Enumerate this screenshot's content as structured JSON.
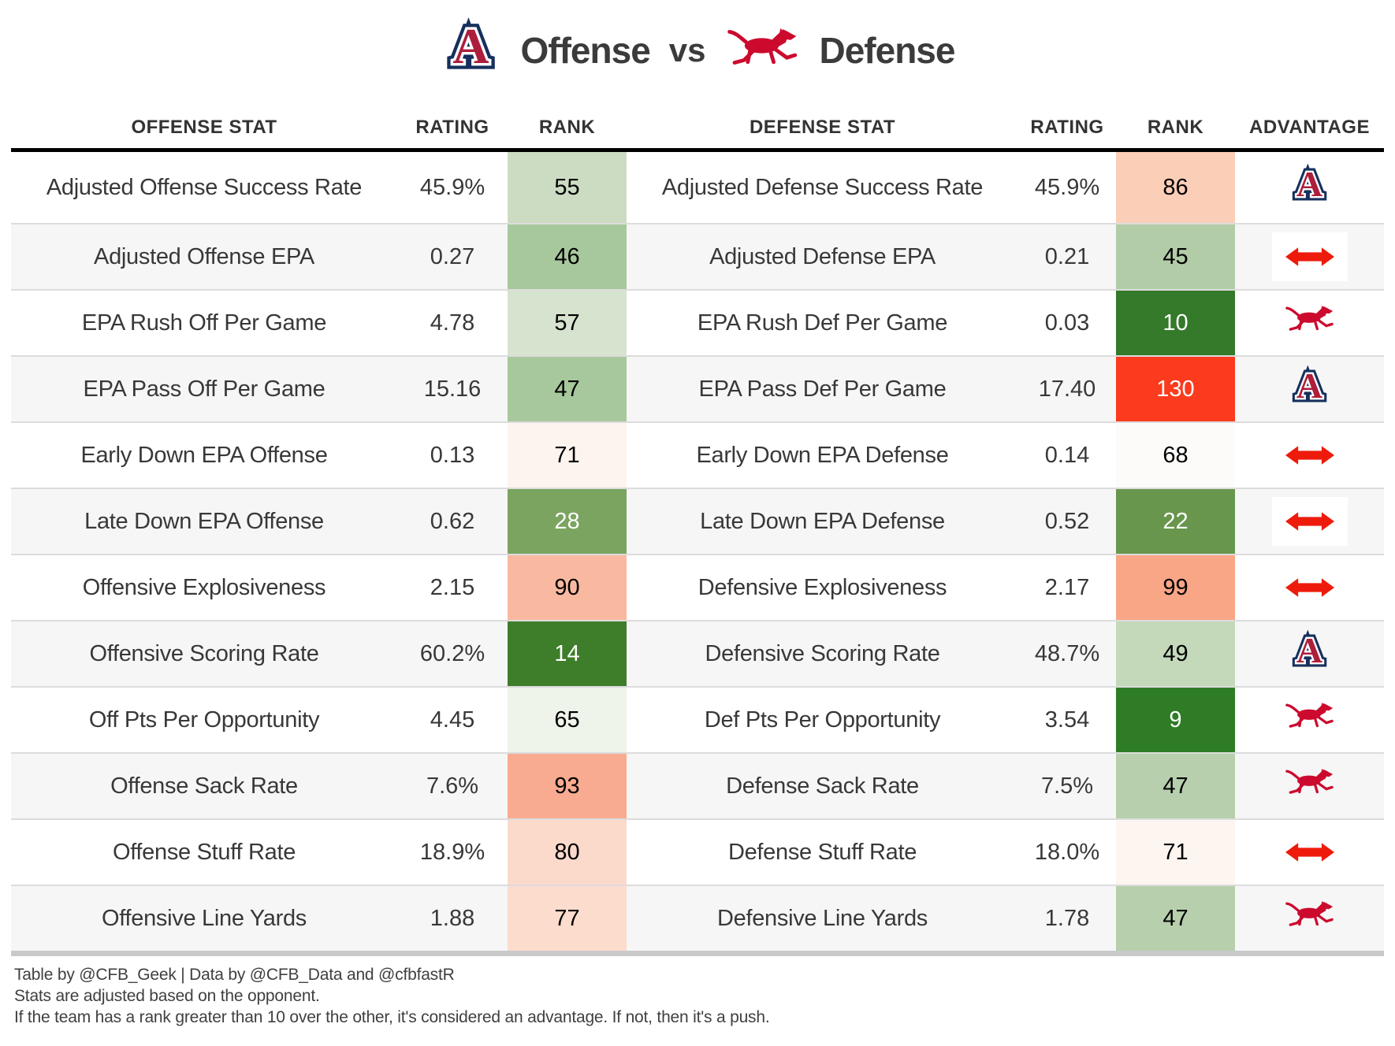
{
  "title": {
    "team1_label": "Offense",
    "vs": "vs",
    "team2_label": "Defense"
  },
  "colors": {
    "push_arrow_red": "#ee1b0c",
    "arizona_navy": "#16305d",
    "arizona_red": "#ad1e3c",
    "smu_red": "#cc0a2e",
    "header_rule": "#000000",
    "bottom_rule": "#c9c9c9",
    "row_alt_bg": "#f6f6f6"
  },
  "table": {
    "columns": [
      "OFFENSE STAT",
      "RATING",
      "RANK",
      "DEFENSE STAT",
      "RATING",
      "RANK",
      "ADVANTAGE"
    ],
    "rows": [
      {
        "offense_stat": "Adjusted Offense Success Rate",
        "offense_rating": "45.9%",
        "offense_rank": "55",
        "offense_rank_bg": "#ccdcc3",
        "offense_rank_text": "#000000",
        "defense_stat": "Adjusted Defense Success Rate",
        "defense_rating": "45.9%",
        "defense_rank": "86",
        "defense_rank_bg": "#fbceb7",
        "defense_rank_text": "#000000",
        "advantage": "arizona"
      },
      {
        "offense_stat": "Adjusted Offense EPA",
        "offense_rating": "0.27",
        "offense_rank": "46",
        "offense_rank_bg": "#a7c89c",
        "offense_rank_text": "#000000",
        "defense_stat": "Adjusted Defense EPA",
        "defense_rating": "0.21",
        "defense_rank": "45",
        "defense_rank_bg": "#b2cca7",
        "defense_rank_text": "#000000",
        "advantage": "push"
      },
      {
        "offense_stat": "EPA Rush Off Per Game",
        "offense_rating": "4.78",
        "offense_rank": "57",
        "offense_rank_bg": "#d6e3ce",
        "offense_rank_text": "#000000",
        "defense_stat": "EPA Rush Def Per Game",
        "defense_rating": "0.03",
        "defense_rank": "10",
        "defense_rank_bg": "#35792a",
        "defense_rank_text": "#ffffff",
        "advantage": "smu"
      },
      {
        "offense_stat": "EPA Pass Off Per Game",
        "offense_rating": "15.16",
        "offense_rank": "47",
        "offense_rank_bg": "#a7c89c",
        "offense_rank_text": "#000000",
        "defense_stat": "EPA Pass Def Per Game",
        "defense_rating": "17.40",
        "defense_rank": "130",
        "defense_rank_bg": "#fb3a1e",
        "defense_rank_text": "#ffffff",
        "advantage": "arizona"
      },
      {
        "offense_stat": "Early Down EPA Offense",
        "offense_rating": "0.13",
        "offense_rank": "71",
        "offense_rank_bg": "#fdf4ee",
        "offense_rank_text": "#000000",
        "defense_stat": "Early Down EPA Defense",
        "defense_rating": "0.14",
        "defense_rank": "68",
        "defense_rank_bg": "#fdfbfa",
        "defense_rank_text": "#000000",
        "advantage": "push"
      },
      {
        "offense_stat": "Late Down EPA Offense",
        "offense_rating": "0.62",
        "offense_rank": "28",
        "offense_rank_bg": "#7aa45f",
        "offense_rank_text": "#ffffff",
        "defense_stat": "Late Down EPA Defense",
        "defense_rating": "0.52",
        "defense_rank": "22",
        "defense_rank_bg": "#68964c",
        "defense_rank_text": "#ffffff",
        "advantage": "push"
      },
      {
        "offense_stat": "Offensive Explosiveness",
        "offense_rating": "2.15",
        "offense_rank": "90",
        "offense_rank_bg": "#f9b9a1",
        "offense_rank_text": "#000000",
        "defense_stat": "Defensive Explosiveness",
        "defense_rating": "2.17",
        "defense_rank": "99",
        "defense_rank_bg": "#f9a687",
        "defense_rank_text": "#000000",
        "advantage": "push"
      },
      {
        "offense_stat": "Offensive Scoring Rate",
        "offense_rating": "60.2%",
        "offense_rank": "14",
        "offense_rank_bg": "#3e7d2a",
        "offense_rank_text": "#ffffff",
        "defense_stat": "Defensive Scoring Rate",
        "defense_rating": "48.7%",
        "defense_rank": "49",
        "defense_rank_bg": "#c4d8ba",
        "defense_rank_text": "#000000",
        "advantage": "arizona"
      },
      {
        "offense_stat": "Off Pts Per Opportunity",
        "offense_rating": "4.45",
        "offense_rank": "65",
        "offense_rank_bg": "#eff4eb",
        "offense_rank_text": "#000000",
        "defense_stat": "Def Pts Per Opportunity",
        "defense_rating": "3.54",
        "defense_rank": "9",
        "defense_rank_bg": "#2e7c25",
        "defense_rank_text": "#ffffff",
        "advantage": "smu"
      },
      {
        "offense_stat": "Offense Sack Rate",
        "offense_rating": "7.6%",
        "offense_rank": "93",
        "offense_rank_bg": "#f8ab90",
        "offense_rank_text": "#000000",
        "defense_stat": "Defense Sack Rate",
        "defense_rating": "7.5%",
        "defense_rank": "47",
        "defense_rank_bg": "#b7cfad",
        "defense_rank_text": "#000000",
        "advantage": "smu"
      },
      {
        "offense_stat": "Offense Stuff Rate",
        "offense_rating": "18.9%",
        "offense_rank": "80",
        "offense_rank_bg": "#fcdacb",
        "offense_rank_text": "#000000",
        "defense_stat": "Defense Stuff Rate",
        "defense_rating": "18.0%",
        "defense_rank": "71",
        "defense_rank_bg": "#fdf5f0",
        "defense_rank_text": "#000000",
        "advantage": "push"
      },
      {
        "offense_stat": "Offensive Line Yards",
        "offense_rating": "1.88",
        "offense_rank": "77",
        "offense_rank_bg": "#fcdccd",
        "offense_rank_text": "#000000",
        "defense_stat": "Defensive Line Yards",
        "defense_rating": "1.78",
        "defense_rank": "47",
        "defense_rank_bg": "#b7cfad",
        "defense_rank_text": "#000000",
        "advantage": "smu"
      }
    ]
  },
  "footer": {
    "lines": [
      "Table by @CFB_Geek | Data by @CFB_Data and @cfbfastR",
      "Stats are adjusted based on the opponent.",
      "If the team has a rank greater than 10 over the other, it's considered an advantage. If not, then it's a push."
    ]
  }
}
